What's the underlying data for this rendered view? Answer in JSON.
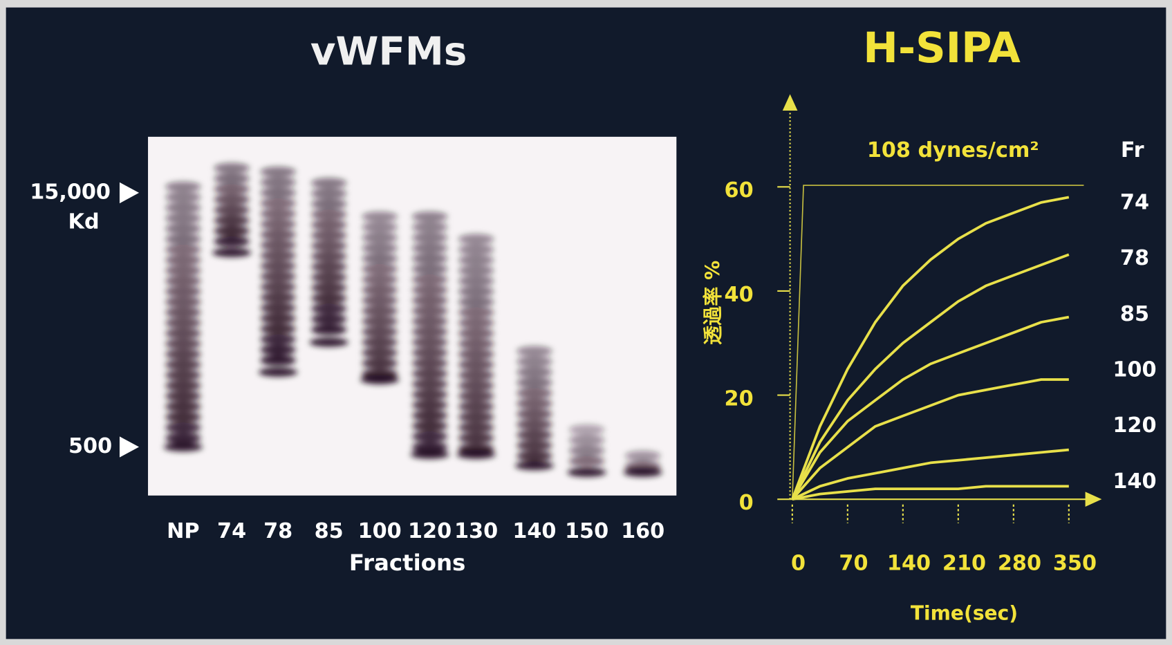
{
  "gel": {
    "title": "vWFMs",
    "markers": [
      "15,000",
      "Kd",
      "500"
    ],
    "lanes": [
      "NP",
      "74",
      "78",
      "85",
      "100",
      "120",
      "130",
      "140",
      "150",
      "160"
    ],
    "xlabel": "Fractions"
  },
  "chart_data": {
    "type": "line",
    "title": "H-SIPA",
    "annotation": "108 dynes/cm²",
    "legend_title": "Fr",
    "xlabel": "Time(sec)",
    "ylabel": "透過率 %",
    "x": [
      0,
      35,
      70,
      105,
      140,
      175,
      210,
      245,
      280,
      315,
      350
    ],
    "xlim": [
      0,
      350
    ],
    "xticks": [
      0,
      70,
      140,
      210,
      280,
      350
    ],
    "ylim": [
      0,
      60
    ],
    "yticks": [
      0,
      20,
      40,
      60
    ],
    "series": [
      {
        "name": "74",
        "color": "#e8e04a",
        "values": [
          0,
          14,
          25,
          34,
          41,
          46,
          50,
          53,
          55,
          57,
          58
        ]
      },
      {
        "name": "78",
        "color": "#e8e04a",
        "values": [
          0,
          11,
          19,
          25,
          30,
          34,
          38,
          41,
          43,
          45,
          47
        ]
      },
      {
        "name": "85",
        "color": "#e8e04a",
        "values": [
          0,
          9,
          15,
          19,
          23,
          26,
          28,
          30,
          32,
          34,
          35
        ]
      },
      {
        "name": "100",
        "color": "#e8e04a",
        "values": [
          0,
          6,
          10,
          14,
          16,
          18,
          20,
          21,
          22,
          23,
          23
        ]
      },
      {
        "name": "120",
        "color": "#e8e04a",
        "values": [
          0,
          2.5,
          4,
          5,
          6,
          7,
          7.5,
          8,
          8.5,
          9,
          9.5
        ]
      },
      {
        "name": "140",
        "color": "#e8e04a",
        "values": [
          0,
          1,
          1.5,
          2,
          2,
          2,
          2,
          2.5,
          2.5,
          2.5,
          2.5
        ]
      }
    ]
  }
}
